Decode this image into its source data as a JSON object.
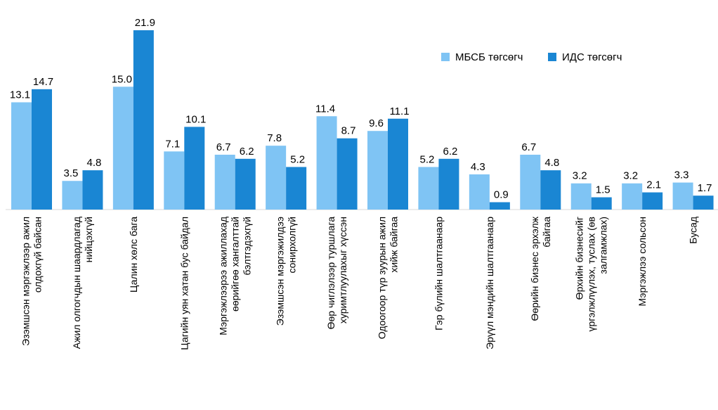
{
  "chart_data": {
    "type": "bar",
    "categories": [
      [
        "Эзэмшсэн мэргэжлээр ажил",
        "олдохгүй байсан"
      ],
      [
        "Ажил олгогчдын шаардлагад",
        "нийцэхгүй"
      ],
      [
        "Цалин хөлс бага"
      ],
      [
        "Цагийн уян хатан бус байдал"
      ],
      [
        "Мэргэжлээрээ ажиллахад",
        "өөрийгөө хангалттай",
        "бэлтгэдэхгүй"
      ],
      [
        "Эзэмшсэн мэргэжилдээ",
        "сонирхолгүй"
      ],
      [
        "Өөр чиглэлээр туршлага",
        "хуримтлуулахыг хүссэн"
      ],
      [
        "Одоогоор түр зуурын ажил",
        "хийж байгаа"
      ],
      [
        "Гэр бүлийн шалтгаанаар"
      ],
      [
        "Эрүүл мэндийн шалтгаанаар"
      ],
      [
        "Өөрийн бизнес эрхэлж",
        "байгаа"
      ],
      [
        "Өрхийн бизнесийг",
        "үргэлжлүүлэх, туслах (өв",
        "залгамжлах)"
      ],
      [
        "Мэргэжлээ сольсон"
      ],
      [
        "Бусад"
      ]
    ],
    "series": [
      {
        "name": "МБСБ төгсөгч",
        "color": "#7fc4f4",
        "values": [
          13.1,
          3.5,
          15.0,
          7.1,
          6.7,
          7.8,
          11.4,
          9.6,
          5.2,
          4.3,
          6.7,
          3.2,
          3.2,
          3.3
        ],
        "labels": [
          "13.1",
          "3.5",
          "15.0",
          "7.1",
          "6.7",
          "7.8",
          "11.4",
          "9.6",
          "5.2",
          "4.3",
          "6.7",
          "3.2",
          "3.2",
          "3.3"
        ]
      },
      {
        "name": "ИДС төгсөгч",
        "color": "#1a86d3",
        "values": [
          14.7,
          4.8,
          21.9,
          10.1,
          6.2,
          5.2,
          8.7,
          11.1,
          6.2,
          0.9,
          4.8,
          1.5,
          2.1,
          1.7
        ],
        "labels": [
          "14.7",
          "4.8",
          "21.9",
          "10.1",
          "6.2",
          "5.2",
          "8.7",
          "11.1",
          "6.2",
          "0.9",
          "4.8",
          "1.5",
          "2.1",
          "1.7"
        ]
      }
    ],
    "ylim": [
      0,
      21.9
    ],
    "legend": "top-right",
    "grid": false,
    "axis_color": "#d9d9d9"
  }
}
